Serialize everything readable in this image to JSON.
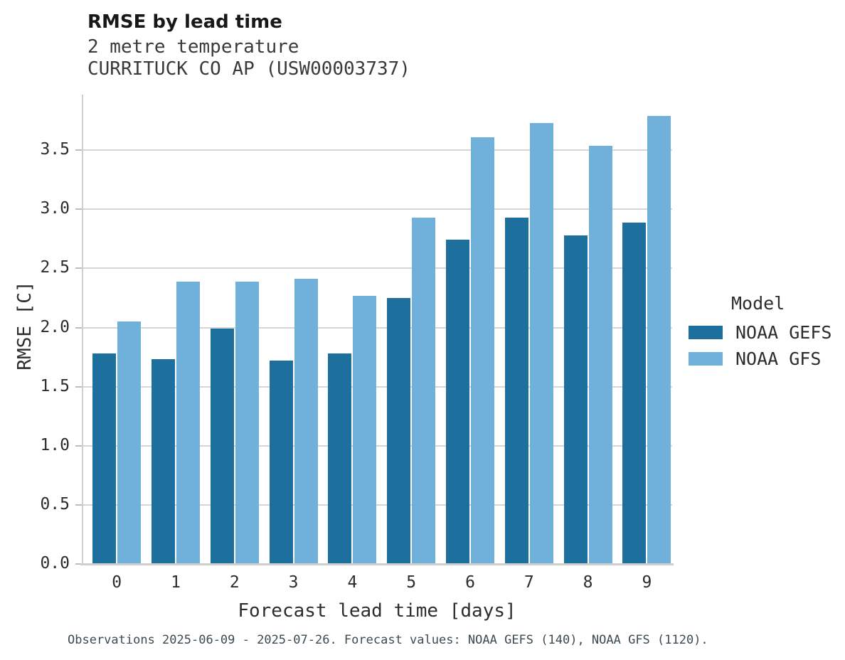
{
  "header": {
    "title": "RMSE by lead time",
    "subtitle_line1": "2 metre temperature",
    "subtitle_line2": "CURRITUCK CO AP (USW00003737)"
  },
  "chart_data": {
    "type": "bar",
    "title": "RMSE by lead time",
    "subtitle": [
      "2 metre temperature",
      "CURRITUCK CO AP (USW00003737)"
    ],
    "categories": [
      "0",
      "1",
      "2",
      "3",
      "4",
      "5",
      "6",
      "7",
      "8",
      "9"
    ],
    "series": [
      {
        "name": "NOAA GEFS",
        "color": "#1d6f9e",
        "values": [
          1.78,
          1.73,
          1.99,
          1.72,
          1.78,
          2.25,
          2.74,
          2.93,
          2.78,
          2.89
        ]
      },
      {
        "name": "NOAA GFS",
        "color": "#6fb1da",
        "values": [
          2.05,
          2.39,
          2.39,
          2.41,
          2.27,
          2.93,
          3.61,
          3.73,
          3.54,
          3.79
        ]
      }
    ],
    "xlabel": "Forecast lead time [days]",
    "ylabel": "RMSE [C]",
    "yticks": [
      0.0,
      0.5,
      1.0,
      1.5,
      2.0,
      2.5,
      3.0,
      3.5
    ],
    "ylim": [
      0,
      3.97
    ],
    "grid": "horizontal",
    "legend_position": "right"
  },
  "legend": {
    "title": "Model"
  },
  "caption": "Observations 2025-06-09 - 2025-07-26. Forecast values: NOAA GEFS (140), NOAA GFS (1120)."
}
